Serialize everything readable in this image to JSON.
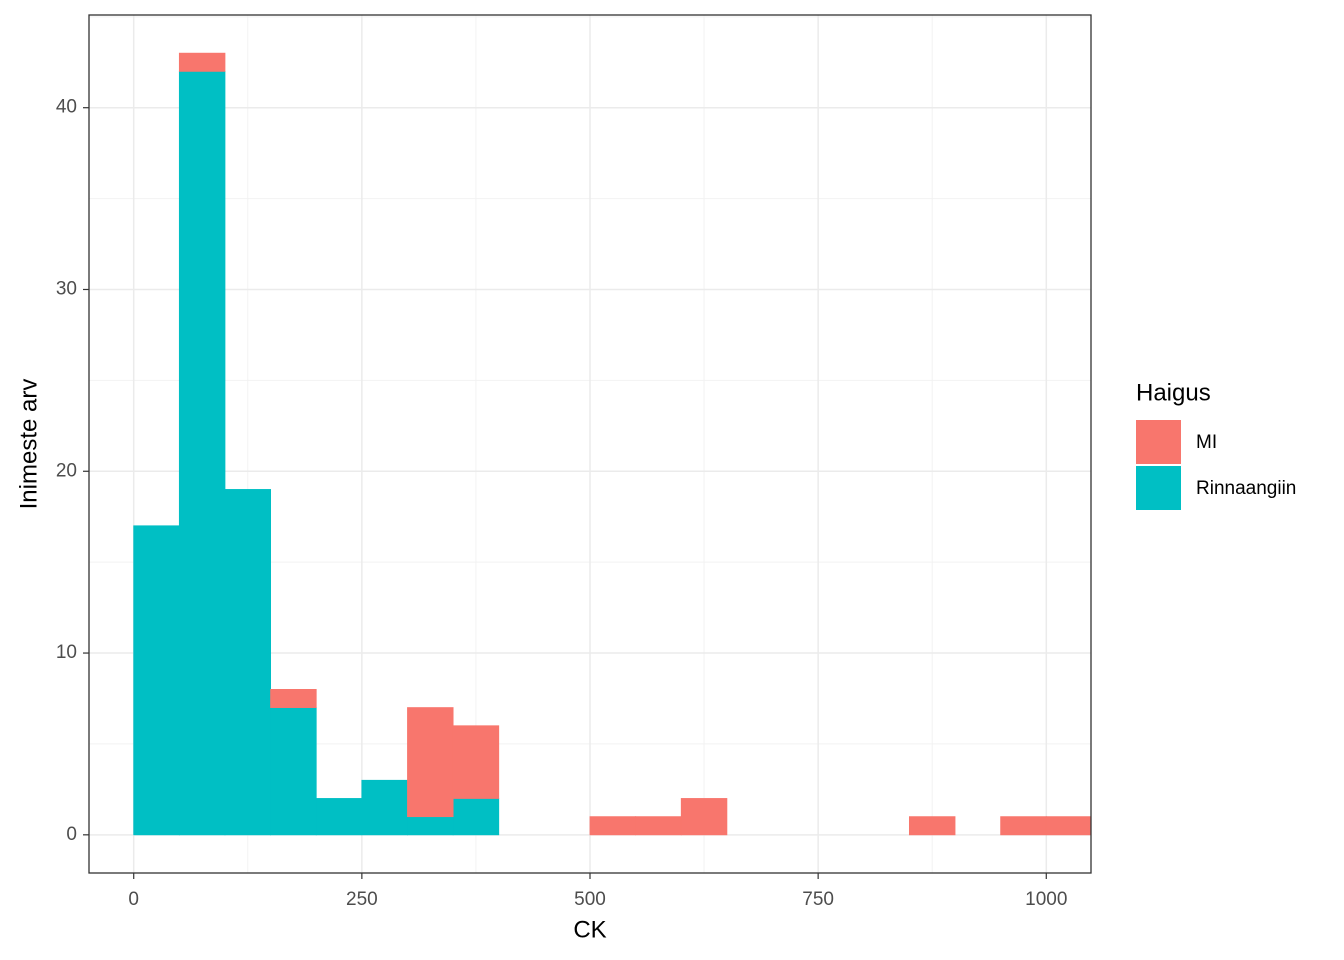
{
  "chart_data": {
    "type": "histogram",
    "x_label": "CK",
    "y_label": "Inimeste arv",
    "bins": [
      0,
      50,
      100,
      150,
      200,
      250,
      300,
      350,
      400,
      450,
      500,
      550,
      600,
      650,
      700,
      750,
      800,
      850,
      900,
      950,
      1000,
      1050
    ],
    "stacked": true,
    "series": [
      {
        "name": "MI",
        "color": "#f8766d",
        "values": [
          0,
          1,
          0,
          1,
          0,
          0,
          6,
          4,
          0,
          0,
          1,
          1,
          2,
          0,
          0,
          0,
          0,
          1,
          0,
          1,
          1
        ]
      },
      {
        "name": "Rinnaangiin",
        "color": "#00bfc4",
        "values": [
          17,
          42,
          19,
          7,
          2,
          3,
          1,
          2,
          0,
          0,
          0,
          0,
          0,
          0,
          0,
          0,
          0,
          0,
          0,
          0,
          0
        ]
      }
    ],
    "legend_title": "Haigus",
    "legend_position": "right",
    "xlim": [
      -49,
      1049
    ],
    "xticks": [
      0,
      250,
      500,
      750,
      1000
    ],
    "ylim": [
      -2.1,
      45.1
    ],
    "yticks": [
      0,
      10,
      20,
      30,
      40
    ],
    "grid": true,
    "minor_grid": true
  }
}
